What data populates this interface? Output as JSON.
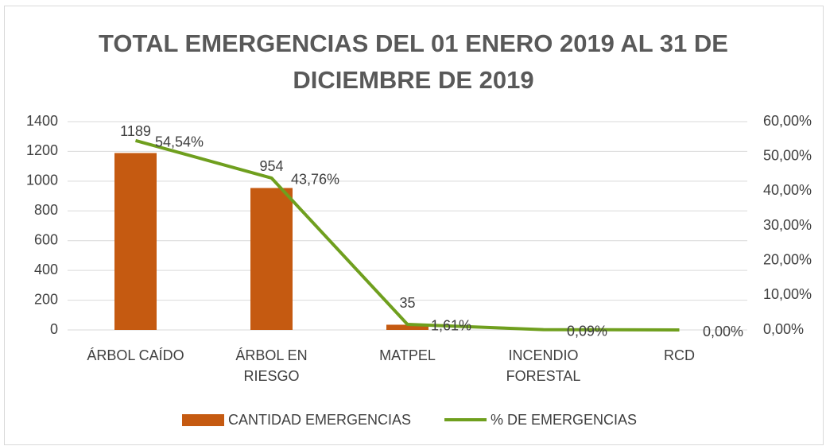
{
  "chart_data": {
    "type": "bar",
    "title": "TOTAL EMERGENCIAS DEL 01 ENERO 2019 AL 31 DE DICIEMBRE DE 2019",
    "categories": [
      "ÁRBOL CAÍDO",
      "ÁRBOL EN RIESGO",
      "MATPEL",
      "INCENDIO FORESTAL",
      "RCD"
    ],
    "series": [
      {
        "name": "CANTIDAD EMERGENCIAS",
        "type": "bar",
        "color": "#c55a11",
        "values": [
          1189,
          954,
          35,
          2,
          0
        ],
        "value_labels": [
          "1189",
          "954",
          "35",
          null,
          null
        ]
      },
      {
        "name": "% DE EMERGENCIAS",
        "type": "line",
        "axis": "y2",
        "color": "#6f9f1e",
        "values": [
          54.54,
          43.76,
          1.61,
          0.09,
          0
        ],
        "value_labels": [
          "54,54%",
          "43,76%",
          "1,61%",
          "0,09%",
          "0,00%"
        ]
      }
    ],
    "ylim": [
      0,
      1400
    ],
    "yticks": [
      0,
      200,
      400,
      600,
      800,
      1000,
      1200,
      1400
    ],
    "y2lim": [
      0,
      60
    ],
    "y2ticks": [
      {
        "value": 0,
        "label": "0,00%"
      },
      {
        "value": 10,
        "label": "10,00%"
      },
      {
        "value": 20,
        "label": "20,00%"
      },
      {
        "value": 30,
        "label": "30,00%"
      },
      {
        "value": 40,
        "label": "40,00%"
      },
      {
        "value": 50,
        "label": "50,00%"
      },
      {
        "value": 60,
        "label": "60,00%"
      }
    ],
    "grid": true,
    "legend": "bottom"
  }
}
